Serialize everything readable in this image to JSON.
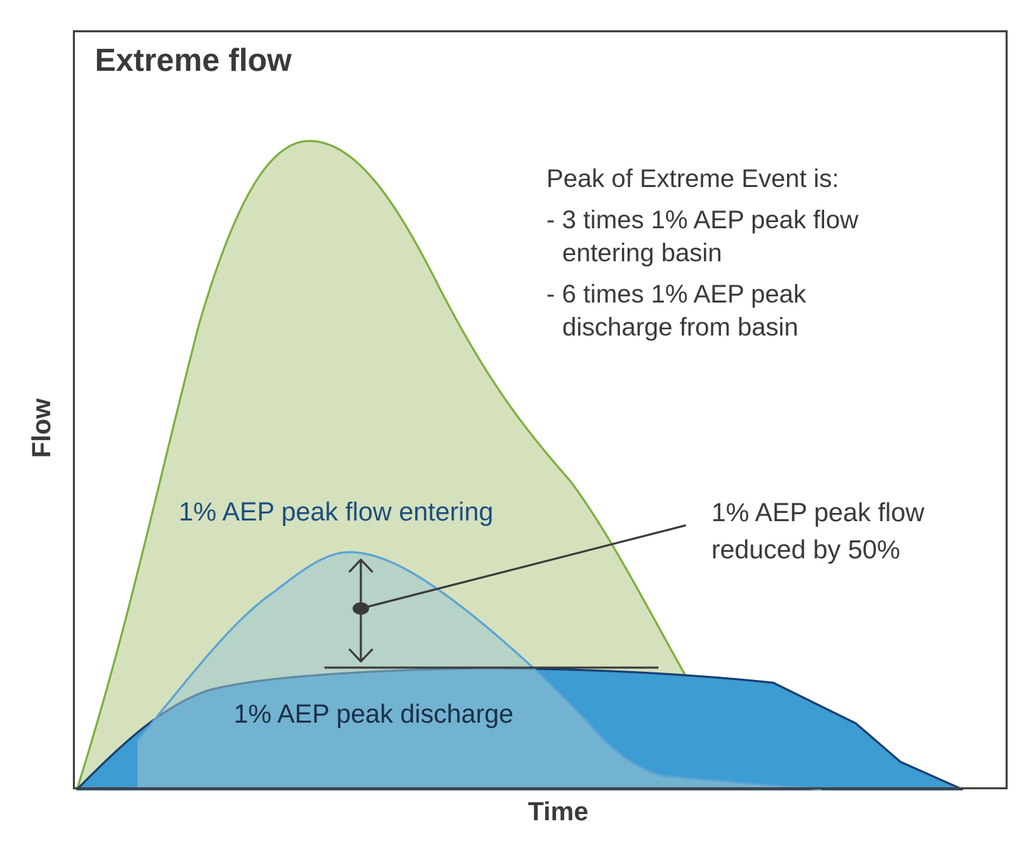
{
  "title": "Extreme flow",
  "y_axis_label": "Flow",
  "x_axis_label": "Time",
  "note": {
    "heading": "Peak of Extreme Event is:",
    "item1_line1": "- 3 times 1% AEP peak flow",
    "item1_line2": "entering basin",
    "item2_line1": "- 6 times 1% AEP peak",
    "item2_line2": "discharge from basin"
  },
  "labels": {
    "entering": "1% AEP peak flow entering",
    "discharge": "1% AEP peak discharge",
    "reduced_line1": "1% AEP peak flow",
    "reduced_line2": "reduced by 50%"
  },
  "colors": {
    "extreme_fill": "#d5e1bd",
    "extreme_stroke": "#7daf3e",
    "entering_fill": "#a3c4b5",
    "entering_stroke": "#5aa3d6",
    "discharge_fill": "#3d9cd2",
    "discharge_stroke": "#173e70",
    "annotation": "#3a3a3a"
  }
}
